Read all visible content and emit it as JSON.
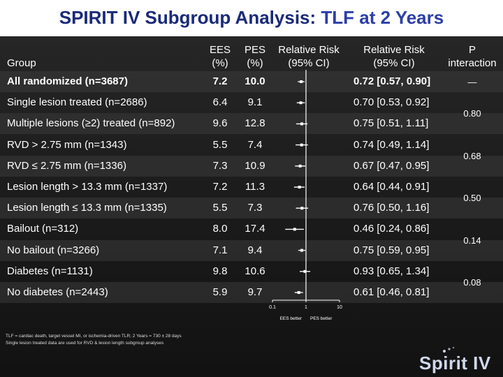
{
  "title": {
    "main": "SPIRIT IV Subgroup Analysis: ",
    "accent": "TLF at 2 Years"
  },
  "headers": {
    "group": "Group",
    "ees": [
      "EES",
      "(%)"
    ],
    "pes": [
      "PES",
      "(%)"
    ],
    "rr_plot": [
      "Relative Risk",
      "(95% CI)"
    ],
    "rr_text": [
      "Relative Risk",
      "(95% CI)"
    ],
    "p_interaction": [
      "P",
      "interaction"
    ]
  },
  "rows": [
    {
      "label": "All randomized (n=3687)",
      "ees": "7.2",
      "pes": "10.0",
      "rr_text": "0.72 [0.57, 0.90]",
      "bold": true
    },
    {
      "label": "Single lesion treated (n=2686)",
      "ees": "6.4",
      "pes": "9.1",
      "rr_text": "0.70 [0.53, 0.92]",
      "bold": false
    },
    {
      "label": "Multiple lesions (≥2) treated (n=892)",
      "ees": "9.6",
      "pes": "12.8",
      "rr_text": "0.75 [0.51, 1.11]",
      "bold": false
    },
    {
      "label": "RVD > 2.75 mm (n=1343)",
      "ees": "5.5",
      "pes": "7.4",
      "rr_text": "0.74 [0.49, 1.14]",
      "bold": false
    },
    {
      "label": "RVD ≤ 2.75 mm (n=1336)",
      "ees": "7.3",
      "pes": "10.9",
      "rr_text": "0.67 [0.47, 0.95]",
      "bold": false
    },
    {
      "label": "Lesion length > 13.3 mm (n=1337)",
      "ees": "7.2",
      "pes": "11.3",
      "rr_text": "0.64 [0.44, 0.91]",
      "bold": false
    },
    {
      "label": "Lesion length ≤ 13.3 mm (n=1335)",
      "ees": "5.5",
      "pes": "7.3",
      "rr_text": "0.76 [0.50, 1.16]",
      "bold": false
    },
    {
      "label": "Bailout (n=312)",
      "ees": "8.0",
      "pes": "17.4",
      "rr_text": "0.46 [0.24, 0.86]",
      "bold": false
    },
    {
      "label": "No bailout (n=3266)",
      "ees": "7.1",
      "pes": "9.4",
      "rr_text": "0.75 [0.59, 0.95]",
      "bold": false
    },
    {
      "label": "Diabetes (n=1131)",
      "ees": "9.8",
      "pes": "10.6",
      "rr_text": "0.93 [0.65, 1.34]",
      "bold": false
    },
    {
      "label": "No diabetes (n=2443)",
      "ees": "5.9",
      "pes": "9.7",
      "rr_text": "0.61 [0.46, 0.81]",
      "bold": false
    }
  ],
  "p_values": [
    {
      "value": "—",
      "rows": [
        0
      ]
    },
    {
      "value": "0.80",
      "rows": [
        1,
        2
      ]
    },
    {
      "value": "0.68",
      "rows": [
        3,
        4
      ]
    },
    {
      "value": "0.50",
      "rows": [
        5,
        6
      ]
    },
    {
      "value": "0.14",
      "rows": [
        7,
        8
      ]
    },
    {
      "value": "0.08",
      "rows": [
        9,
        10
      ]
    }
  ],
  "chart_data": {
    "type": "forest",
    "scale": "log",
    "xlim": [
      0.1,
      10
    ],
    "reference_line": 1,
    "x_ticks": [
      "0.1",
      "1",
      "10"
    ],
    "x_tick_values": [
      0.1,
      1,
      10
    ],
    "left_label": "EES better",
    "right_label": "PES better",
    "points": [
      {
        "rr": 0.72,
        "lo": 0.57,
        "hi": 0.9
      },
      {
        "rr": 0.7,
        "lo": 0.53,
        "hi": 0.92
      },
      {
        "rr": 0.75,
        "lo": 0.51,
        "hi": 1.11
      },
      {
        "rr": 0.74,
        "lo": 0.49,
        "hi": 1.14
      },
      {
        "rr": 0.67,
        "lo": 0.47,
        "hi": 0.95
      },
      {
        "rr": 0.64,
        "lo": 0.44,
        "hi": 0.91
      },
      {
        "rr": 0.76,
        "lo": 0.5,
        "hi": 1.16
      },
      {
        "rr": 0.46,
        "lo": 0.24,
        "hi": 0.86
      },
      {
        "rr": 0.75,
        "lo": 0.59,
        "hi": 0.95
      },
      {
        "rr": 0.93,
        "lo": 0.65,
        "hi": 1.34
      },
      {
        "rr": 0.61,
        "lo": 0.46,
        "hi": 0.81
      }
    ]
  },
  "footnotes": [
    "TLF = cardiac death, target vessel MI, or ischemia-driven TLR; 2 Years = 730 ± 28 days",
    "Single lesion treated data are used for RVD & lesion length subgroup analyses"
  ],
  "logo": "Spirit IV",
  "colors": {
    "title": "#1a2a78",
    "accent": "#2d3fa8",
    "background": "#1c1c1c",
    "marker": "#ffffff"
  }
}
